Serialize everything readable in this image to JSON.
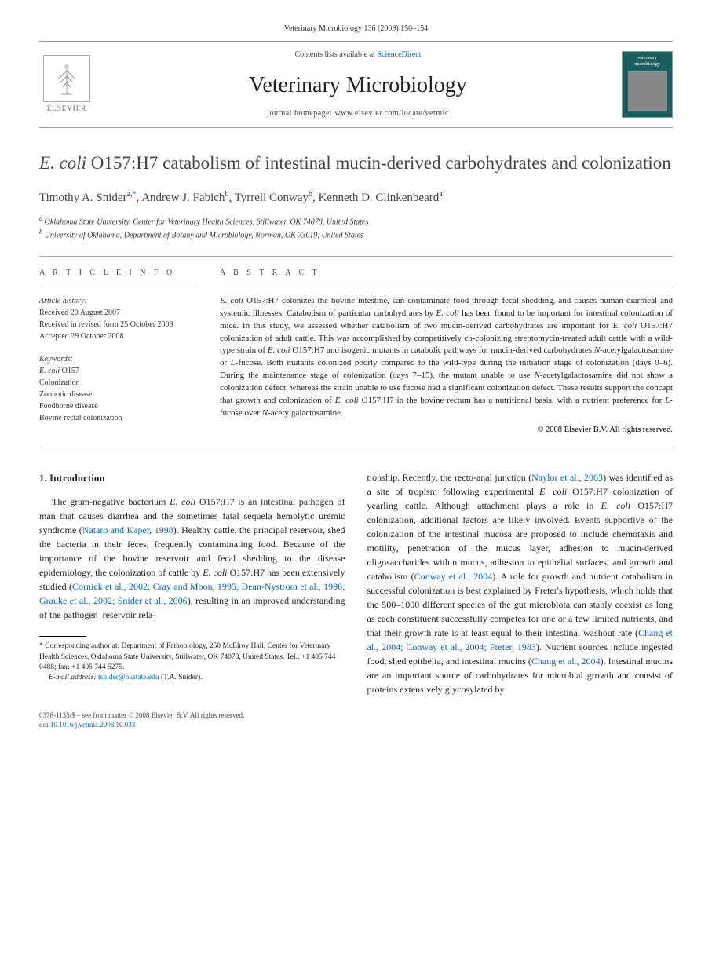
{
  "header": {
    "citation": "Veterinary Microbiology 136 (2009) 150–154"
  },
  "masthead": {
    "elsevier_label": "ELSEVIER",
    "contents_prefix": "Contents lists available at ",
    "contents_link": "ScienceDirect",
    "journal_name": "Veterinary Microbiology",
    "homepage_prefix": "journal homepage: ",
    "homepage_url": "www.elsevier.com/locate/vetmic",
    "cover_small_text": "veterinary microbiology"
  },
  "article": {
    "title_italic": "E. coli",
    "title_rest": " O157:H7 catabolism of intestinal mucin-derived carbohydrates and colonization",
    "authors": [
      {
        "name": "Timothy A. Snider",
        "aff": "a,",
        "corr": "*"
      },
      {
        "name": "Andrew J. Fabich",
        "aff": "b",
        "corr": ""
      },
      {
        "name": "Tyrrell Conway",
        "aff": "b",
        "corr": ""
      },
      {
        "name": "Kenneth D. Clinkenbeard",
        "aff": "a",
        "corr": ""
      }
    ],
    "affiliations": [
      {
        "sup": "a",
        "text": "Oklahoma State University, Center for Veterinary Health Sciences, Stillwater, OK 74078, United States"
      },
      {
        "sup": "b",
        "text": "University of Oklahoma, Department of Botany and Microbiology, Norman, OK 73019, United States"
      }
    ]
  },
  "meta": {
    "info_heading": "A R T I C L E   I N F O",
    "history_title": "Article history:",
    "history_lines": [
      "Received 20 August 2007",
      "Received in revised form 25 October 2008",
      "Accepted 29 October 2008"
    ],
    "keywords_title": "Keywords:",
    "keywords": [
      "E. coli O157",
      "Colonization",
      "Zoonotic disease",
      "Foodborne disease",
      "Bovine rectal colonization"
    ]
  },
  "abstract": {
    "heading": "A B S T R A C T",
    "text": "E. coli O157:H7 colonizes the bovine intestine, can contaminate food through fecal shedding, and causes human diarrheal and systemic illnesses. Catabolism of particular carbohydrates by E. coli has been found to be important for intestinal colonization of mice. In this study, we assessed whether catabolism of two mucin-derived carbohydrates are important for E. coli O157:H7 colonization of adult cattle. This was accomplished by competitively co-colonizing streptomycin-treated adult cattle with a wild-type strain of E. coli O157:H7 and isogenic mutants in catabolic pathways for mucin-derived carbohydrates N-acetylgalactosamine or L-fucose. Both mutants colonized poorly compared to the wild-type during the initiation stage of colonization (days 0–6). During the maintenance stage of colonization (days 7–15), the mutant unable to use N-acetylgalactosamine did not show a colonization defect, whereas the strain unable to use fucose had a significant colonization defect. These results support the concept that growth and colonization of E. coli O157:H7 in the bovine rectum has a nutritional basis, with a nutrient preference for L-fucose over N-acetylgalactosamine.",
    "copyright": "© 2008 Elsevier B.V. All rights reserved."
  },
  "body": {
    "section_num": "1.",
    "section_title": "Introduction",
    "col1_text": "The gram-negative bacterium E. coli O157:H7 is an intestinal pathogen of man that causes diarrhea and the sometimes fatal sequela hemolytic uremic syndrome (Nataro and Kaper, 1998). Healthy cattle, the principal reservoir, shed the bacteria in their feces, frequently contaminating food. Because of the importance of the bovine reservoir and fecal shedding to the disease epidemiology, the colonization of cattle by E. coli O157:H7 has been extensively studied (Cornick et al., 2002; Cray and Moon, 1995; Dean-Nystrom et al., 1998; Grauke et al., 2002; Snider et al., 2006), resulting in an improved understanding of the pathogen–reservoir rela-",
    "col2_text": "tionship. Recently, the recto-anal junction (Naylor et al., 2003) was identified as a site of tropism following experimental E. coli O157:H7 colonization of yearling cattle. Although attachment plays a role in E. coli O157:H7 colonization, additional factors are likely involved. Events supportive of the colonization of the intestinal mucosa are proposed to include chemotaxis and motility, penetration of the mucus layer, adhesion to mucin-derived oligosaccharides within mucus, adhesion to epithelial surfaces, and growth and catabolism (Conway et al., 2004). A role for growth and nutrient catabolism in successful colonization is best explained by Freter's hypothesis, which holds that the 500–1000 different species of the gut microbiota can stably coexist as long as each constituent successfully competes for one or a few limited nutrients, and that their growth rate is at least equal to their intestinal washout rate (Chang et al., 2004; Conway et al., 2004; Freter, 1983). Nutrient sources include ingested food, shed epithelia, and intestinal mucins (Chang et al., 2004). Intestinal mucins are an important source of carbohydrates for microbial growth and consist of proteins extensively glycosylated by"
  },
  "footnote": {
    "corr_label": "* Corresponding author at",
    "corr_text": ": Department of Pathobiology, 250 McElroy Hall, Center for Veterinary Health Sciences, Oklahoma State University, Stillwater, OK 74078, United States. Tel.: +1 405 744 0488; fax: +1 405 744 5275.",
    "email_label": "E-mail address:",
    "email": "tsnider@okstate.edu",
    "email_name": " (T.A. Snider)."
  },
  "footer": {
    "front_matter": "0378-1135/$ – see front matter © 2008 Elsevier B.V. All rights reserved.",
    "doi_prefix": "doi:",
    "doi": "10.1016/j.vetmic.2008.10.033"
  },
  "colors": {
    "link": "#0066cc",
    "text": "#222222",
    "muted": "#444444",
    "border": "#aaaaaa",
    "cover_bg": "#1a5f5f"
  }
}
